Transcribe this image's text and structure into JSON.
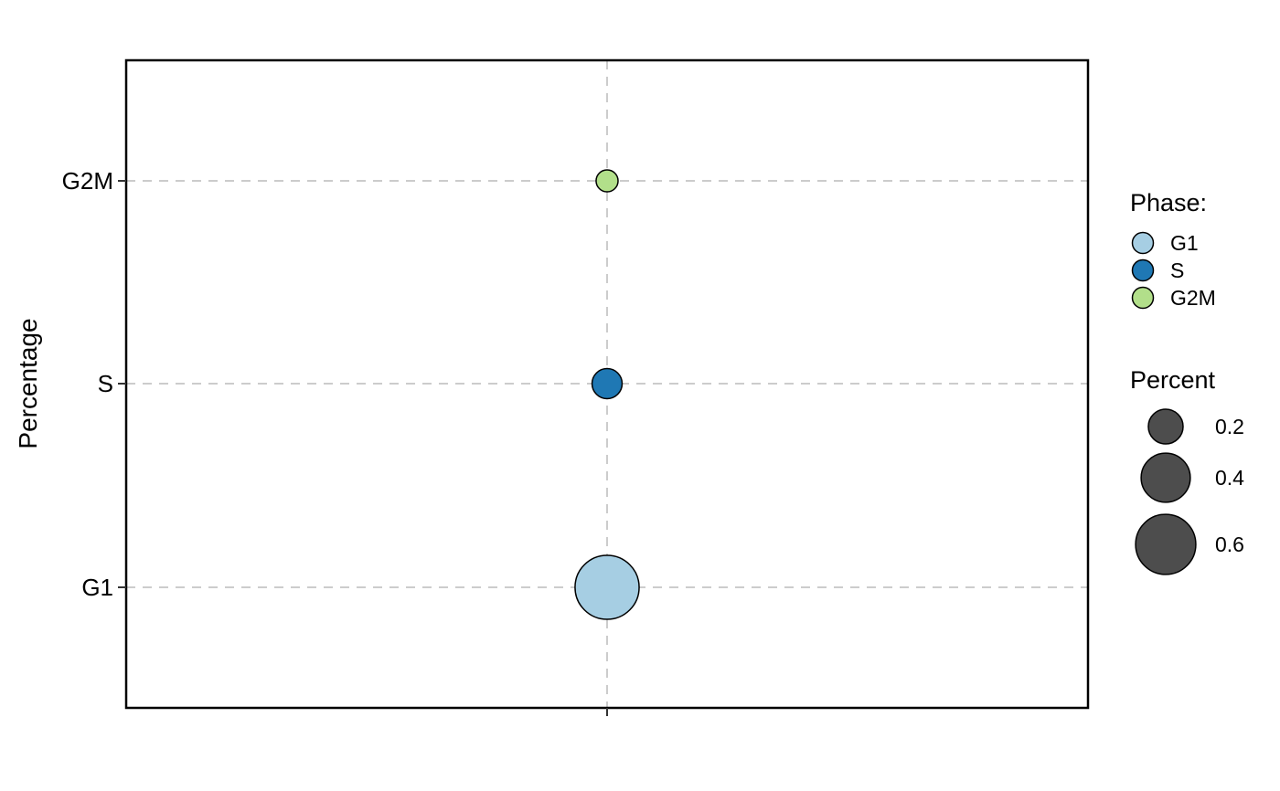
{
  "chart_data": {
    "type": "scatter",
    "title": "",
    "xlabel": "",
    "ylabel": "Percentage",
    "categories": [
      "G1",
      "S",
      "G2M"
    ],
    "points": [
      {
        "phase": "G1",
        "percent": 0.68
      },
      {
        "phase": "S",
        "percent": 0.15
      },
      {
        "phase": "G2M",
        "percent": 0.08
      }
    ],
    "grid": true,
    "legend": {
      "placement": "right",
      "phase_title": "Phase:",
      "phase_entries": [
        {
          "label": "G1",
          "color": "#a6cee3"
        },
        {
          "label": "S",
          "color": "#1f78b4"
        },
        {
          "label": "G2M",
          "color": "#b2df8a"
        }
      ],
      "size_title": "Percent",
      "size_entries": [
        {
          "label": "0.2",
          "value": 0.2
        },
        {
          "label": "0.4",
          "value": 0.4
        },
        {
          "label": "0.6",
          "value": 0.6
        }
      ],
      "size_color": "#4d4d4d"
    }
  }
}
